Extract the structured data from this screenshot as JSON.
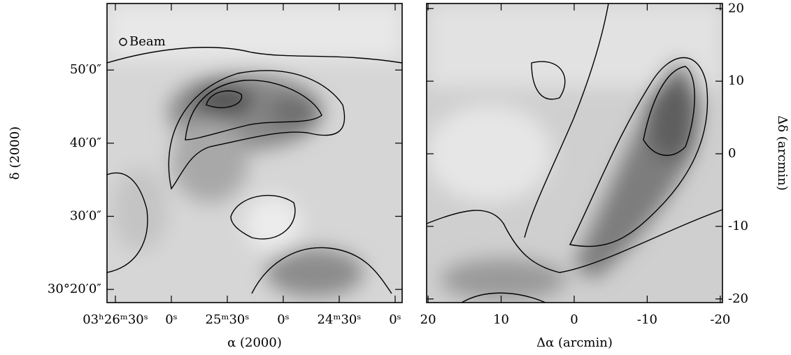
{
  "chart_data": [
    {
      "type": "image",
      "xlabel": "α (2000)",
      "ylabel": "δ (2000)",
      "annotation": "Beam",
      "xlim": [
        12394.5,
        12236.25
      ],
      "ylim": [
        1818.2,
        1859.1
      ],
      "xticks": [
        {
          "value": 12390,
          "label": "03ʰ26ᵐ30ˢ"
        },
        {
          "value": 12360,
          "label": "0ˢ"
        },
        {
          "value": 12330,
          "label": "25ᵐ30ˢ"
        },
        {
          "value": 12300,
          "label": "0ˢ"
        },
        {
          "value": 12270,
          "label": "24ᵐ30ˢ"
        },
        {
          "value": 12240,
          "label": "0ˢ"
        }
      ],
      "yticks": [
        {
          "value": 1820,
          "label": "30°20′0″"
        },
        {
          "value": 1830,
          "label": "30′0″"
        },
        {
          "value": 1840,
          "label": "40′0″"
        },
        {
          "value": 1850,
          "label": "50′0″"
        }
      ],
      "y_axis_position": "left"
    },
    {
      "type": "image",
      "xlabel": "Δα (arcmin)",
      "ylabel": "Δδ (arcmin)",
      "xlim": [
        20.2,
        -20.3
      ],
      "ylim": [
        -20.5,
        20.7
      ],
      "xticks": [
        20,
        10,
        0,
        -10,
        -20
      ],
      "yticks": [
        -20,
        -10,
        0,
        10,
        20
      ],
      "y_axis_position": "right"
    }
  ]
}
